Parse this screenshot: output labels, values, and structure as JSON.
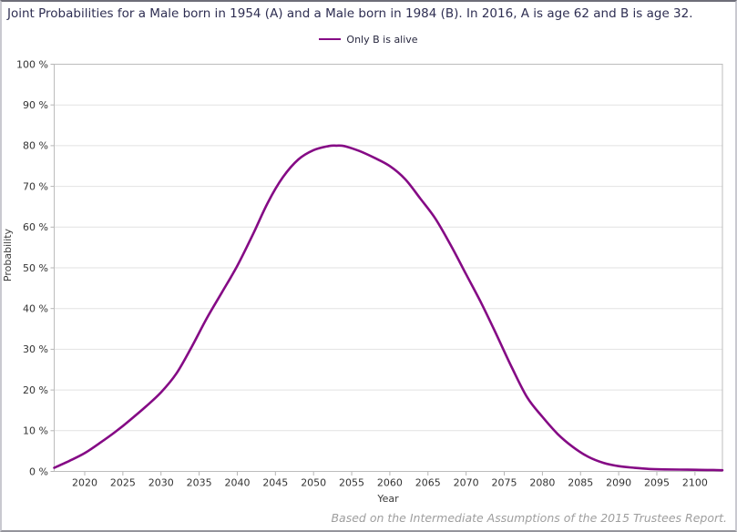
{
  "chart_data": {
    "type": "line",
    "title": "Joint Probabilities for a Male born in 1954 (A) and a Male born in 1984 (B). In 2016, A is age 62 and B is age 32.",
    "source_note": "Based on the Intermediate Assumptions of the 2015 Trustees Report.",
    "xlabel": "Year",
    "ylabel": "Probability",
    "xlim": [
      2016,
      2103.6
    ],
    "ylim": [
      0,
      100
    ],
    "grid": "horizontal",
    "legend_position": "top-center",
    "x_ticks": [
      2020,
      2025,
      2030,
      2035,
      2040,
      2045,
      2050,
      2055,
      2060,
      2065,
      2070,
      2075,
      2080,
      2085,
      2090,
      2095,
      2100
    ],
    "y_ticks": [
      {
        "value": 0,
        "label": "0 %"
      },
      {
        "value": 10,
        "label": "10 %"
      },
      {
        "value": 20,
        "label": "20 %"
      },
      {
        "value": 30,
        "label": "30 %"
      },
      {
        "value": 40,
        "label": "40 %"
      },
      {
        "value": 50,
        "label": "50 %"
      },
      {
        "value": 60,
        "label": "60 %"
      },
      {
        "value": 70,
        "label": "70 %"
      },
      {
        "value": 80,
        "label": "80 %"
      },
      {
        "value": 90,
        "label": "90 %"
      },
      {
        "value": 100,
        "label": "100 %"
      }
    ],
    "series": [
      {
        "name": "Only B is alive",
        "color": "#850a85",
        "points": [
          [
            2016,
            0.9
          ],
          [
            2018,
            2.6
          ],
          [
            2020,
            4.5
          ],
          [
            2022,
            7.0
          ],
          [
            2024,
            9.7
          ],
          [
            2026,
            12.7
          ],
          [
            2028,
            15.9
          ],
          [
            2030,
            19.4
          ],
          [
            2032,
            24.0
          ],
          [
            2034,
            30.5
          ],
          [
            2036,
            37.6
          ],
          [
            2038,
            44.0
          ],
          [
            2040,
            50.5
          ],
          [
            2042,
            58.0
          ],
          [
            2044,
            66.0
          ],
          [
            2046,
            72.3
          ],
          [
            2048,
            76.6
          ],
          [
            2050,
            78.9
          ],
          [
            2052,
            79.9
          ],
          [
            2053,
            80.0
          ],
          [
            2054,
            79.9
          ],
          [
            2056,
            78.7
          ],
          [
            2058,
            77.0
          ],
          [
            2060,
            75.0
          ],
          [
            2062,
            71.8
          ],
          [
            2064,
            67.0
          ],
          [
            2066,
            62.0
          ],
          [
            2068,
            55.5
          ],
          [
            2070,
            48.4
          ],
          [
            2072,
            41.3
          ],
          [
            2074,
            33.5
          ],
          [
            2076,
            25.5
          ],
          [
            2078,
            18.2
          ],
          [
            2080,
            13.4
          ],
          [
            2082,
            9.2
          ],
          [
            2084,
            6.0
          ],
          [
            2086,
            3.6
          ],
          [
            2088,
            2.1
          ],
          [
            2090,
            1.3
          ],
          [
            2092,
            0.9
          ],
          [
            2094,
            0.6
          ],
          [
            2096,
            0.5
          ],
          [
            2098,
            0.45
          ],
          [
            2100,
            0.4
          ],
          [
            2102,
            0.35
          ],
          [
            2103.6,
            0.3
          ]
        ]
      }
    ]
  }
}
